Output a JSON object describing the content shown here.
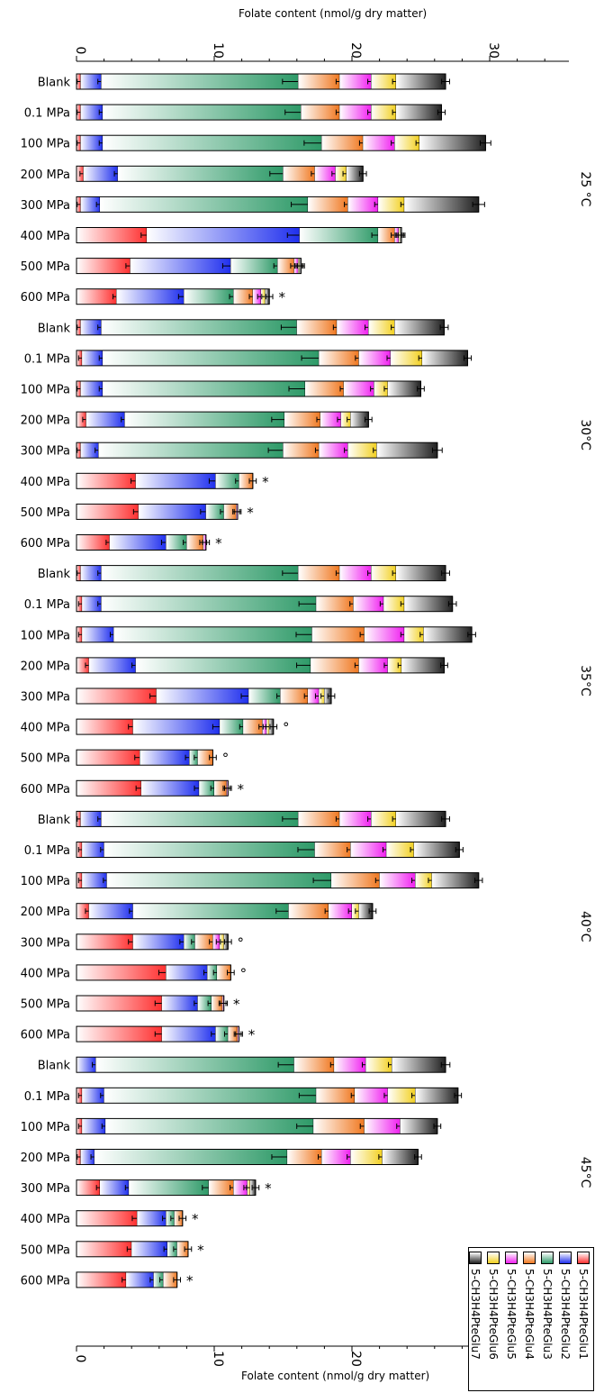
{
  "chart_data": {
    "type": "bar",
    "orientation": "horizontal stacked",
    "axis_label": "Folate content (nmol/g dry matter)",
    "top_ticks": [
      "0",
      "10",
      "20",
      "30"
    ],
    "bottom_ticks": [
      "0",
      "10",
      "20"
    ],
    "xlim": [
      0,
      35
    ],
    "legend_placement": "bottom-right",
    "series": [
      {
        "name": "5-CH3H4PteGlu1",
        "color": "#ff3030"
      },
      {
        "name": "5-CH3H4PteGlu2",
        "color": "#2030ee"
      },
      {
        "name": "5-CH3H4PteGlu3",
        "color": "#2e9a68"
      },
      {
        "name": "5-CH3H4PteGlu4",
        "color": "#f07820"
      },
      {
        "name": "5-CH3H4PteGlu5",
        "color": "#f020f0"
      },
      {
        "name": "5-CH3H4PteGlu6",
        "color": "#f2d020"
      },
      {
        "name": "5-CH3H4PteGlu7",
        "color": "#202020"
      }
    ],
    "groups": [
      {
        "label": "25 °C",
        "rows": [
          {
            "label": "Blank",
            "values": [
              0.3,
              1.5,
              14.3,
              3.0,
              2.3,
              1.8,
              3.6
            ],
            "mark": ""
          },
          {
            "label": "0.1 MPa",
            "values": [
              0.3,
              1.6,
              14.4,
              2.8,
              2.3,
              1.8,
              3.3
            ],
            "mark": ""
          },
          {
            "label": "100 MPa",
            "values": [
              0.3,
              1.6,
              15.9,
              3.0,
              2.3,
              1.8,
              4.8
            ],
            "mark": ""
          },
          {
            "label": "200 MPa",
            "values": [
              0.5,
              2.5,
              12.0,
              2.3,
              1.5,
              0.8,
              1.2
            ],
            "mark": ""
          },
          {
            "label": "300 MPa",
            "values": [
              0.3,
              1.4,
              15.1,
              2.9,
              2.2,
              1.9,
              5.4
            ],
            "mark": ""
          },
          {
            "label": "400 MPa",
            "values": [
              5.1,
              11.1,
              5.7,
              1.2,
              0.3,
              0.1,
              0.1
            ],
            "mark": ""
          },
          {
            "label": "500 MPa",
            "values": [
              3.9,
              7.3,
              3.4,
              1.2,
              0.3,
              0.1,
              0.1
            ],
            "mark": ""
          },
          {
            "label": "600 MPa",
            "values": [
              2.9,
              4.9,
              3.6,
              1.4,
              0.6,
              0.3,
              0.3
            ],
            "mark": "*"
          }
        ]
      },
      {
        "label": "30°C",
        "rows": [
          {
            "label": "Blank",
            "values": [
              0.3,
              1.5,
              14.2,
              2.9,
              2.3,
              1.9,
              3.6
            ],
            "mark": ""
          },
          {
            "label": "0.1 MPa",
            "values": [
              0.4,
              1.5,
              15.7,
              2.9,
              2.3,
              2.3,
              3.3
            ],
            "mark": ""
          },
          {
            "label": "100 MPa",
            "values": [
              0.3,
              1.6,
              14.7,
              2.8,
              2.2,
              1.0,
              2.4
            ],
            "mark": ""
          },
          {
            "label": "200 MPa",
            "values": [
              0.7,
              2.8,
              11.6,
              2.6,
              1.5,
              0.7,
              1.3
            ],
            "mark": ""
          },
          {
            "label": "300 MPa",
            "values": [
              0.3,
              1.3,
              13.4,
              2.6,
              2.1,
              2.1,
              4.4
            ],
            "mark": ""
          },
          {
            "label": "400 MPa",
            "values": [
              4.3,
              5.8,
              1.7,
              1.0,
              0.0,
              0.0,
              0.0
            ],
            "mark": "*"
          },
          {
            "label": "500 MPa",
            "values": [
              4.5,
              4.9,
              1.3,
              0.9,
              0.1,
              0.0,
              0.0
            ],
            "mark": "*"
          },
          {
            "label": "600 MPa",
            "values": [
              2.4,
              4.1,
              1.5,
              1.2,
              0.2,
              0.0,
              0.0
            ],
            "mark": "*"
          }
        ]
      },
      {
        "label": "35°C",
        "rows": [
          {
            "label": "Blank",
            "values": [
              0.3,
              1.5,
              14.3,
              3.0,
              2.3,
              1.8,
              3.6
            ],
            "mark": ""
          },
          {
            "label": "0.1 MPa",
            "values": [
              0.4,
              1.4,
              15.6,
              2.7,
              2.2,
              1.5,
              3.5
            ],
            "mark": ""
          },
          {
            "label": "100 MPa",
            "values": [
              0.4,
              2.3,
              14.4,
              3.8,
              2.9,
              1.4,
              3.5
            ],
            "mark": ""
          },
          {
            "label": "200 MPa",
            "values": [
              0.9,
              3.4,
              12.7,
              3.5,
              2.1,
              1.0,
              3.1
            ],
            "mark": ""
          },
          {
            "label": "300 MPa",
            "values": [
              5.8,
              6.7,
              2.3,
              2.0,
              0.8,
              0.4,
              0.5
            ],
            "mark": ""
          },
          {
            "label": "400 MPa",
            "values": [
              4.1,
              6.3,
              1.7,
              1.4,
              0.3,
              0.2,
              0.3
            ],
            "mark": "°"
          },
          {
            "label": "500 MPa",
            "values": [
              4.6,
              3.6,
              0.6,
              1.1,
              0.0,
              0.0,
              0.0
            ],
            "mark": "°"
          },
          {
            "label": "600 MPa",
            "values": [
              4.7,
              4.2,
              1.1,
              0.9,
              0.1,
              0.0,
              0.0
            ],
            "mark": "*"
          }
        ]
      },
      {
        "label": "40°C",
        "rows": [
          {
            "label": "Blank",
            "values": [
              0.3,
              1.5,
              14.3,
              3.0,
              2.3,
              1.8,
              3.6
            ],
            "mark": ""
          },
          {
            "label": "0.1 MPa",
            "values": [
              0.4,
              1.6,
              15.3,
              2.6,
              2.6,
              2.0,
              3.3
            ],
            "mark": ""
          },
          {
            "label": "100 MPa",
            "values": [
              0.4,
              1.8,
              16.3,
              3.5,
              2.6,
              1.2,
              3.4
            ],
            "mark": ""
          },
          {
            "label": "200 MPa",
            "values": [
              0.9,
              3.2,
              11.3,
              2.9,
              1.7,
              0.5,
              1.0
            ],
            "mark": ""
          },
          {
            "label": "300 MPa",
            "values": [
              4.1,
              3.7,
              0.8,
              1.3,
              0.5,
              0.3,
              0.3
            ],
            "mark": "°"
          },
          {
            "label": "400 MPa",
            "values": [
              6.5,
              3.0,
              0.7,
              1.0,
              0.0,
              0.0,
              0.0
            ],
            "mark": "°"
          },
          {
            "label": "500 MPa",
            "values": [
              6.2,
              2.6,
              1.0,
              0.8,
              0.1,
              0.0,
              0.0
            ],
            "mark": "*"
          },
          {
            "label": "600 MPa",
            "values": [
              6.2,
              3.9,
              0.9,
              0.7,
              0.1,
              0.0,
              0.0
            ],
            "mark": "*"
          }
        ]
      },
      {
        "label": "45°C",
        "rows": [
          {
            "label": "Blank",
            "values": [
              0.0,
              1.4,
              14.4,
              2.9,
              2.3,
              1.9,
              3.9
            ],
            "mark": ""
          },
          {
            "label": "0.1 MPa",
            "values": [
              0.4,
              1.6,
              15.4,
              2.8,
              2.4,
              2.0,
              3.1
            ],
            "mark": ""
          },
          {
            "label": "100 MPa",
            "values": [
              0.4,
              1.7,
              15.1,
              3.7,
              2.6,
              0.0,
              2.7
            ],
            "mark": ""
          },
          {
            "label": "200 MPa",
            "values": [
              0.3,
              1.0,
              14.0,
              2.5,
              2.1,
              2.3,
              2.6
            ],
            "mark": ""
          },
          {
            "label": "300 MPa",
            "values": [
              1.7,
              2.1,
              5.8,
              1.8,
              1.0,
              0.2,
              0.4
            ],
            "mark": "*"
          },
          {
            "label": "400 MPa",
            "values": [
              4.4,
              2.1,
              0.6,
              0.6,
              0.0,
              0.0,
              0.0
            ],
            "mark": "*"
          },
          {
            "label": "500 MPa",
            "values": [
              4.0,
              2.6,
              0.7,
              0.8,
              0.0,
              0.0,
              0.0
            ],
            "mark": "*"
          },
          {
            "label": "600 MPa",
            "values": [
              3.6,
              2.0,
              0.7,
              1.0,
              0.0,
              0.0,
              0.0
            ],
            "mark": "*"
          }
        ]
      }
    ]
  }
}
